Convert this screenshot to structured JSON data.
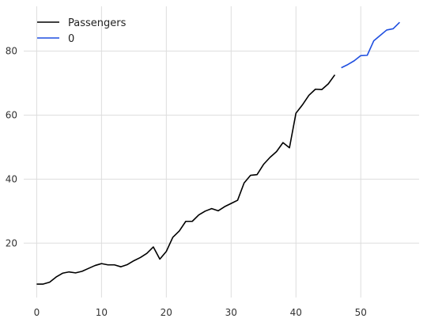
{
  "chart_data": {
    "type": "line",
    "xlim": [
      -2,
      59
    ],
    "ylim": [
      3,
      94
    ],
    "xticks": [
      0,
      10,
      20,
      30,
      40,
      50
    ],
    "yticks": [
      20,
      40,
      60,
      80
    ],
    "grid": true,
    "legend_position": "top-left",
    "series": [
      {
        "name": "Passengers",
        "color": "#000000",
        "x": [
          0,
          1,
          2,
          3,
          4,
          5,
          6,
          7,
          8,
          9,
          10,
          11,
          12,
          13,
          14,
          15,
          16,
          17,
          18,
          19,
          20,
          21,
          22,
          23,
          24,
          25,
          26,
          27,
          28,
          29,
          30,
          31,
          32,
          33,
          34,
          35,
          36,
          37,
          38,
          39,
          40,
          41,
          42,
          43,
          44,
          45,
          46
        ],
        "y": [
          7.2,
          7.2,
          7.8,
          9.4,
          10.6,
          11.0,
          10.7,
          11.2,
          12.1,
          13.0,
          13.6,
          13.2,
          13.2,
          12.6,
          13.3,
          14.5,
          15.5,
          16.8,
          18.8,
          15.0,
          17.4,
          21.8,
          23.8,
          26.8,
          26.8,
          28.8,
          30.0,
          30.8,
          30.1,
          31.4,
          32.4,
          33.4,
          38.8,
          41.2,
          41.4,
          44.6,
          46.8,
          48.6,
          51.4,
          49.8,
          60.6,
          63.2,
          66.2,
          68.1,
          68.0,
          69.8,
          72.6
        ]
      },
      {
        "name": "0",
        "color": "#1f4fe0",
        "x": [
          47,
          48,
          49,
          50,
          51,
          52,
          53,
          54,
          55,
          56
        ],
        "y": [
          74.8,
          75.8,
          77.0,
          78.6,
          78.7,
          83.2,
          84.9,
          86.6,
          87.0,
          89.0
        ]
      }
    ]
  }
}
